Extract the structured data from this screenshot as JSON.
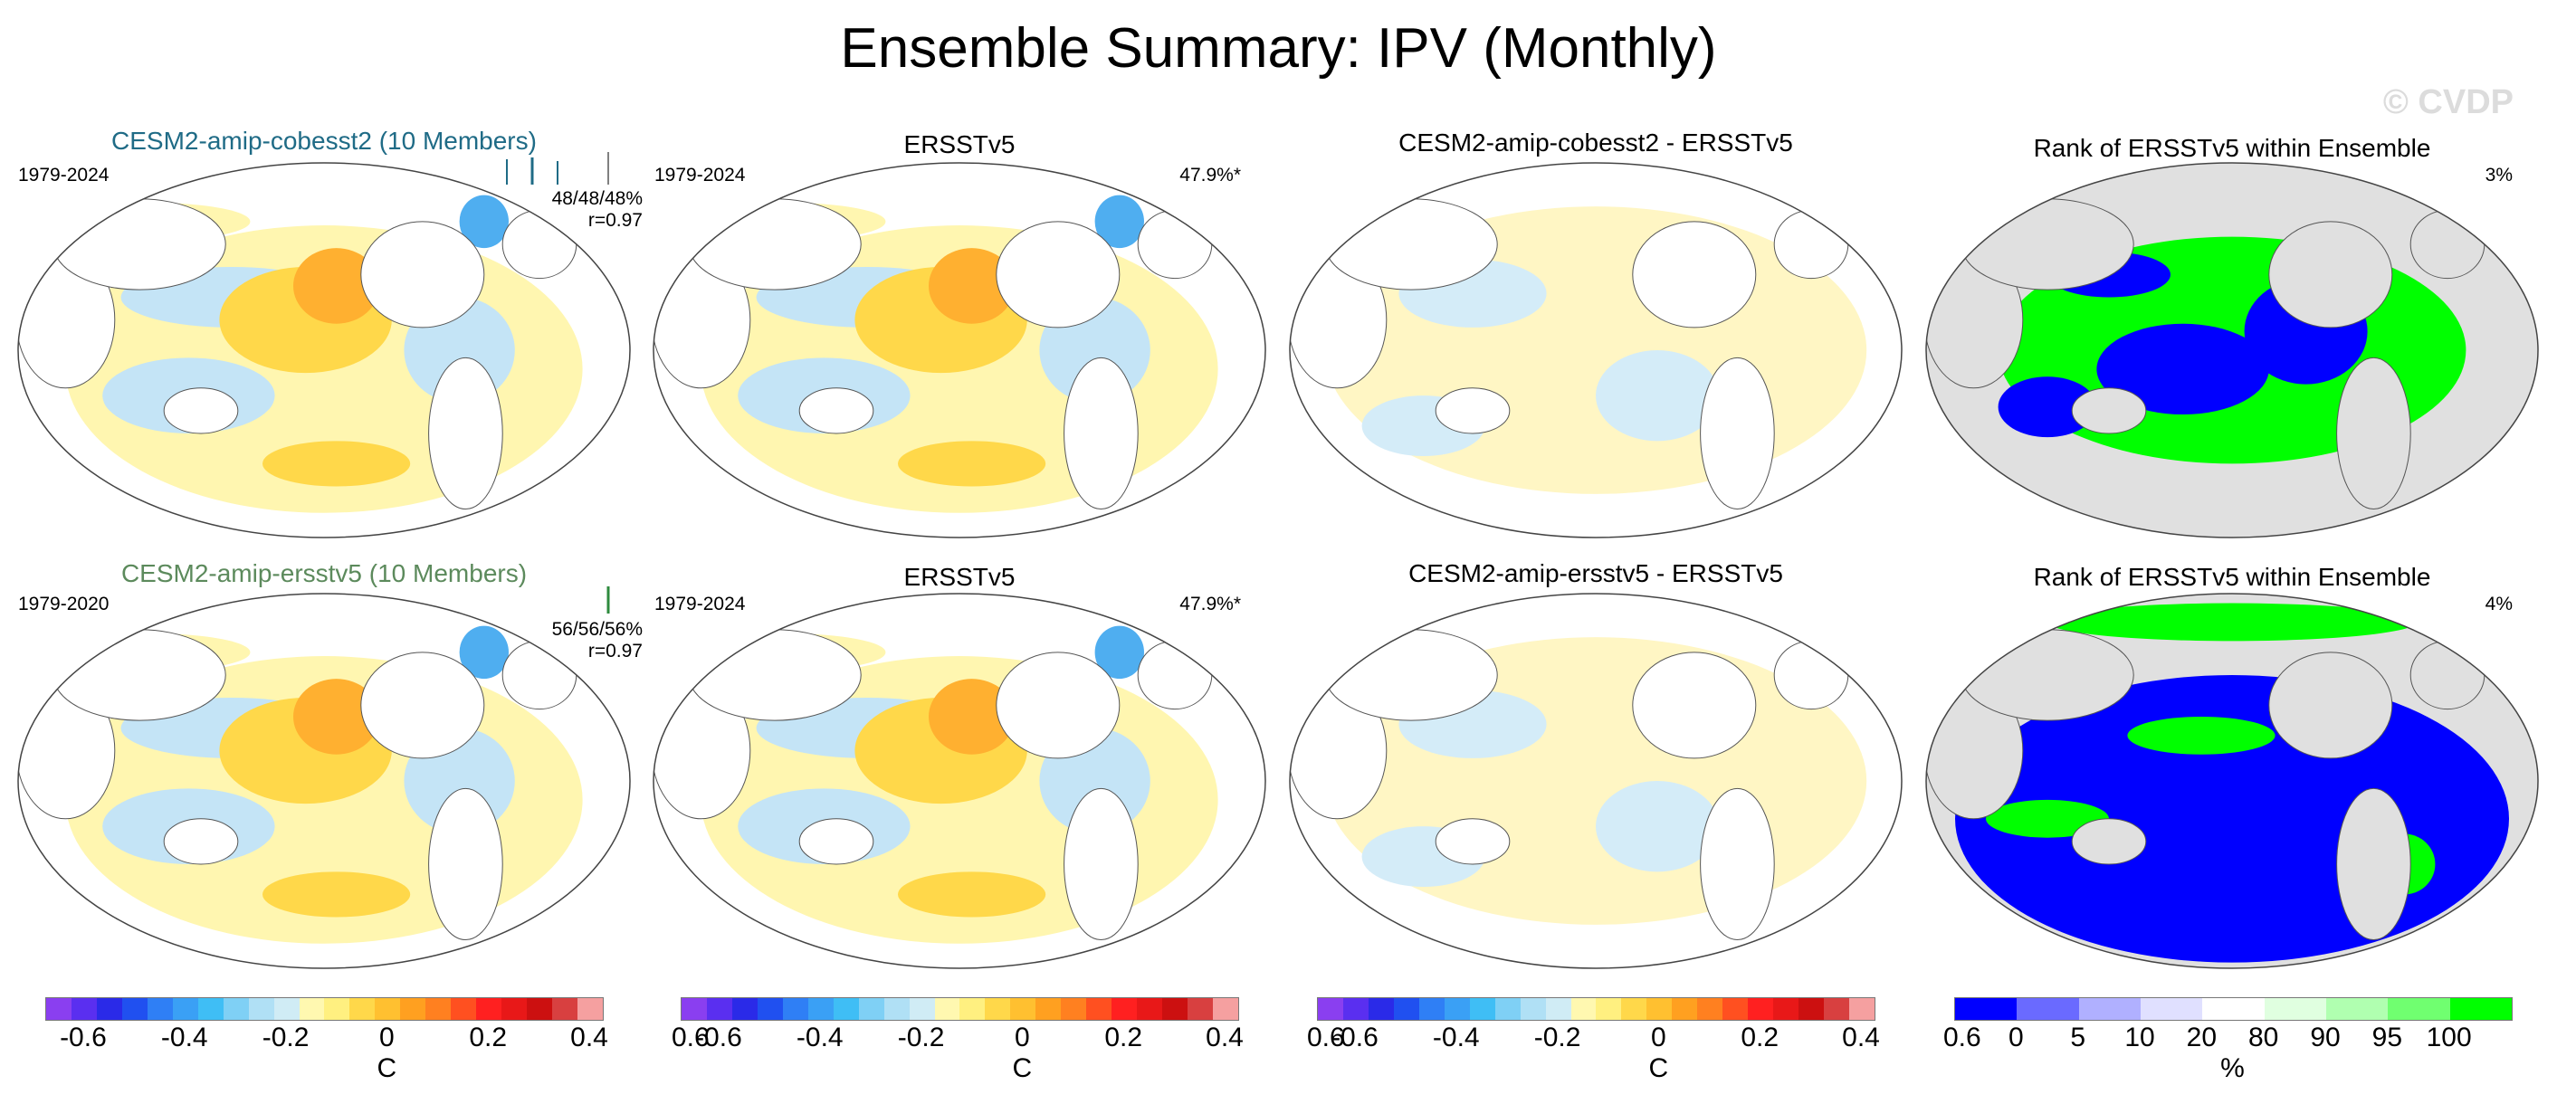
{
  "title": "Ensemble Summary: IPV (Monthly)",
  "watermark": "© CVDP",
  "rows": [
    {
      "model_title": "CESM2-amip-cobesst2 (10 Members)",
      "model_title_color": "#1f6b86",
      "model_years": "1979-2024",
      "model_stats_pct": "48/48/48%",
      "model_stats_r": "r=0.97",
      "obs_title": "ERSSTv5",
      "obs_years": "1979-2024",
      "obs_pct": "47.9%*",
      "diff_title": "CESM2-amip-cobesst2 - ERSSTv5",
      "rank_title": "Rank of ERSSTv5 within Ensemble",
      "rank_pct": "3%"
    },
    {
      "model_title": "CESM2-amip-ersstv5 (10 Members)",
      "model_title_color": "#5c8a5c",
      "model_years": "1979-2020",
      "model_stats_pct": "56/56/56%",
      "model_stats_r": "r=0.97",
      "obs_title": "ERSSTv5",
      "obs_years": "1979-2024",
      "obs_pct": "47.9%*",
      "diff_title": "CESM2-amip-ersstv5 - ERSSTv5",
      "rank_title": "Rank of ERSSTv5 within Ensemble",
      "rank_pct": "4%"
    }
  ],
  "colorbar_temp": {
    "unit": "C",
    "ticks": [
      "-0.6",
      "-0.4",
      "-0.2",
      "0",
      "0.2",
      "0.4",
      "0.6"
    ],
    "colors": [
      "#8a3ff0",
      "#5a2ff0",
      "#2a2ae8",
      "#2050f0",
      "#2f7ff5",
      "#3aa0f5",
      "#3fbef5",
      "#7fd0f5",
      "#b0e0f5",
      "#d0ecf5",
      "#fff8b0",
      "#fff080",
      "#ffd84a",
      "#ffc030",
      "#ffa020",
      "#ff8020",
      "#ff5020",
      "#ff2020",
      "#e81818",
      "#cc1010",
      "#d84040",
      "#f5a0a0"
    ]
  },
  "colorbar_rank": {
    "unit": "%",
    "ticks": [
      "0",
      "5",
      "10",
      "20",
      "80",
      "90",
      "95",
      "100"
    ],
    "colors": [
      "#0000ff",
      "#6a6aff",
      "#b0b0ff",
      "#e0e0ff",
      "#ffffff",
      "#e0ffe0",
      "#b0ffb0",
      "#70ff70",
      "#00ff00"
    ]
  }
}
